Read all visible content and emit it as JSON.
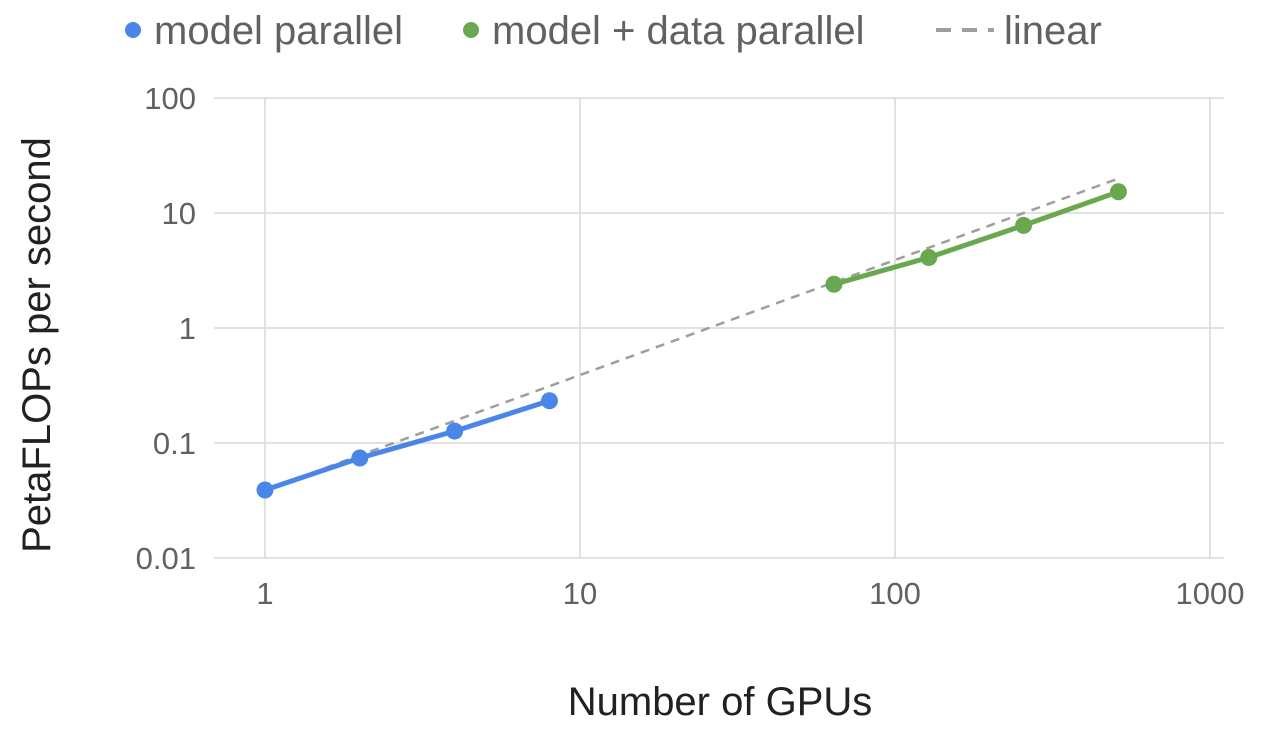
{
  "chart_data": {
    "type": "line",
    "title": "",
    "xlabel": "Number of GPUs",
    "ylabel": "PetaFLOPs per second",
    "x_scale": "log",
    "y_scale": "log",
    "xlim": [
      1,
      1000
    ],
    "ylim": [
      0.01,
      100
    ],
    "x_ticks": [
      "1",
      "10",
      "100",
      "1000"
    ],
    "y_ticks": [
      "100",
      "10",
      "1",
      "0.1",
      "0.01"
    ],
    "grid": true,
    "legend_position": "top",
    "series": [
      {
        "name": "model parallel",
        "color": "#4a86e8",
        "marker": "circle",
        "line_style": "solid",
        "x": [
          1,
          2,
          4,
          8
        ],
        "y": [
          0.039,
          0.074,
          0.127,
          0.233
        ]
      },
      {
        "name": "model + data parallel",
        "color": "#6aa84f",
        "marker": "circle",
        "line_style": "solid",
        "x": [
          64,
          128,
          256,
          512
        ],
        "y": [
          2.4,
          4.1,
          7.8,
          15.3
        ]
      },
      {
        "name": "linear",
        "color": "#9e9e9e",
        "marker": "none",
        "line_style": "dashed",
        "x": [
          1,
          512
        ],
        "y": [
          0.039,
          19.97
        ]
      }
    ]
  }
}
